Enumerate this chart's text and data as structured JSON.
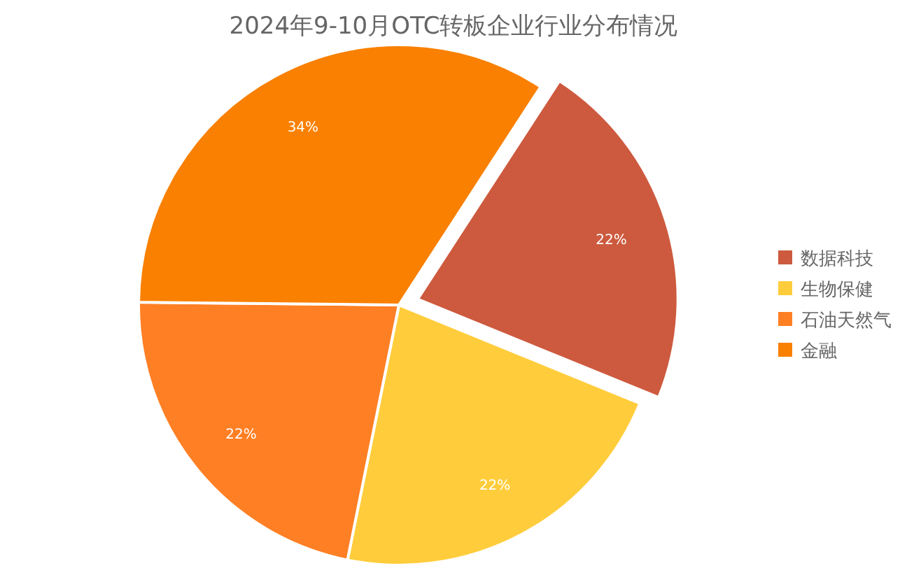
{
  "chart_data": {
    "type": "pie",
    "title": "2024年9-10月OTC转板企业行业分布情况",
    "categories": [
      "数据科技",
      "生物保健",
      "石油天然气",
      "金融"
    ],
    "values": [
      22,
      22,
      22,
      34
    ],
    "colors": [
      "#cd5a3e",
      "#ffcd3c",
      "#ff7f24",
      "#f98000"
    ],
    "value_labels": [
      "22%",
      "22%",
      "22%",
      "34%"
    ],
    "legend": "right"
  }
}
